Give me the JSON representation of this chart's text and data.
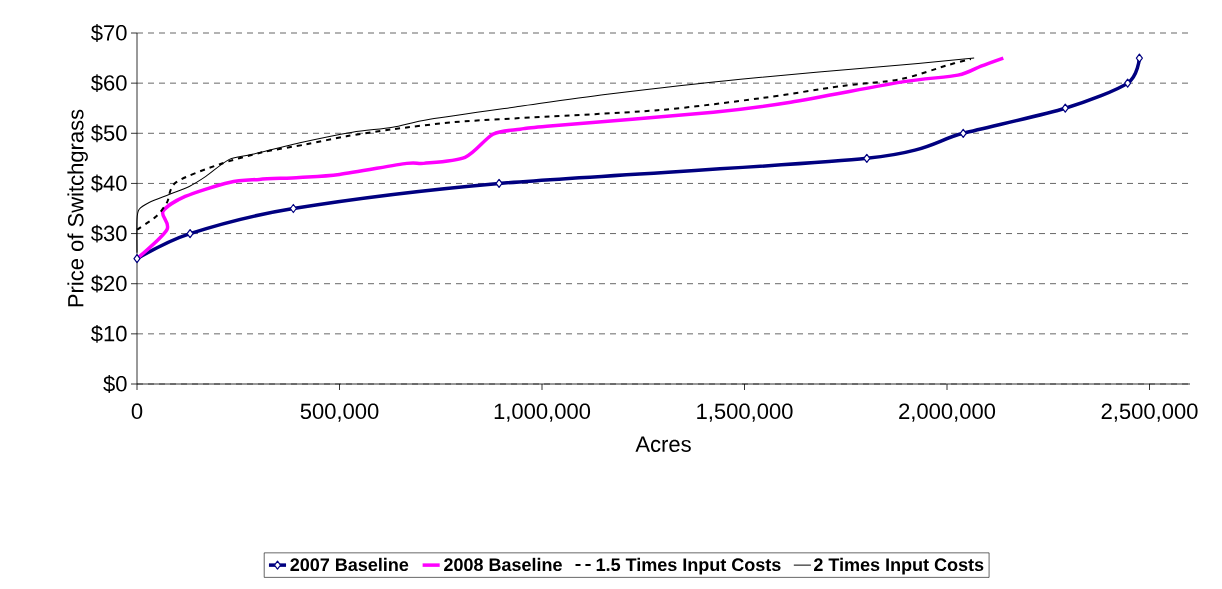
{
  "chart_data": {
    "type": "line",
    "xlabel": "Acres",
    "ylabel": "Price of Switchgrass",
    "xlim": [
      0,
      2600000
    ],
    "ylim": [
      0,
      70
    ],
    "xticks": [
      0,
      {
        "value": 500000,
        "label": "500,000"
      },
      {
        "value": 1000000,
        "label": "1,000,000"
      },
      {
        "value": 1500000,
        "label": "1,500,000"
      },
      {
        "value": 2000000,
        "label": "2,000,000"
      },
      {
        "value": 2500000,
        "label": "2,500,000"
      }
    ],
    "yticks": [
      {
        "value": 0,
        "label": "$0"
      },
      {
        "value": 10,
        "label": "$10"
      },
      {
        "value": 20,
        "label": "$20"
      },
      {
        "value": 30,
        "label": "$30"
      },
      {
        "value": 40,
        "label": "$40"
      },
      {
        "value": 50,
        "label": "$50"
      },
      {
        "value": 60,
        "label": "$60"
      },
      {
        "value": 70,
        "label": "$70"
      }
    ],
    "grid": "y",
    "legend": "bottom",
    "series": [
      {
        "name": "2007 Baseline",
        "color": "#000080",
        "marker": "diamond",
        "line_style": "solid",
        "x": [
          0,
          131000,
          386000,
          894000,
          1802000,
          2040000,
          2292000,
          2446000,
          2475000
        ],
        "values": [
          25,
          30,
          35,
          40,
          45,
          50,
          55,
          60,
          65
        ]
      },
      {
        "name": "2008 Baseline",
        "color": "#ff00ff",
        "marker": "none",
        "line_style": "solid",
        "x": [
          0,
          74000,
          64000,
          119000,
          228000,
          302000,
          401000,
          500000,
          666000,
          708000,
          810000,
          879000,
          946000,
          1012000,
          1423000,
          1614000,
          1886000,
          2027000,
          2084000,
          2139000
        ],
        "values": [
          25,
          30.8,
          34.4,
          37.4,
          40.2,
          40.8,
          41.2,
          41.8,
          44,
          44,
          45.2,
          49.8,
          50.8,
          51.4,
          54.2,
          56.2,
          60.2,
          61.6,
          63.4,
          65
        ]
      },
      {
        "name": "1.5 Times Input Costs",
        "color": "#000000",
        "marker": "none",
        "line_style": "dashed",
        "x": [
          0,
          47000,
          74000,
          96000,
          203000,
          309000,
          418000,
          517000,
          631000,
          780000,
          938000,
          1285000,
          1540000,
          1738000,
          1886000,
          2002000,
          2059000
        ],
        "values": [
          30.8,
          33.4,
          36.2,
          40.2,
          43.8,
          46.2,
          47.8,
          49.4,
          50.8,
          52.2,
          53,
          54.6,
          57,
          59.4,
          60.8,
          63.6,
          64.8
        ]
      },
      {
        "name": "2 Times Input Costs",
        "color": "#000000",
        "marker": "none",
        "line_style": "solid",
        "x": [
          0,
          0,
          5000,
          30000,
          79000,
          129000,
          170000,
          228000,
          285000,
          408000,
          532000,
          631000,
          723000,
          946000,
          1161000,
          1490000,
          1886000,
          2067000
        ],
        "values": [
          26.2,
          32.8,
          34.8,
          36.2,
          37.8,
          39.4,
          41.4,
          44.8,
          45.8,
          48.2,
          50.2,
          51.2,
          52.8,
          55.4,
          57.8,
          60.8,
          63.6,
          65
        ]
      }
    ]
  }
}
